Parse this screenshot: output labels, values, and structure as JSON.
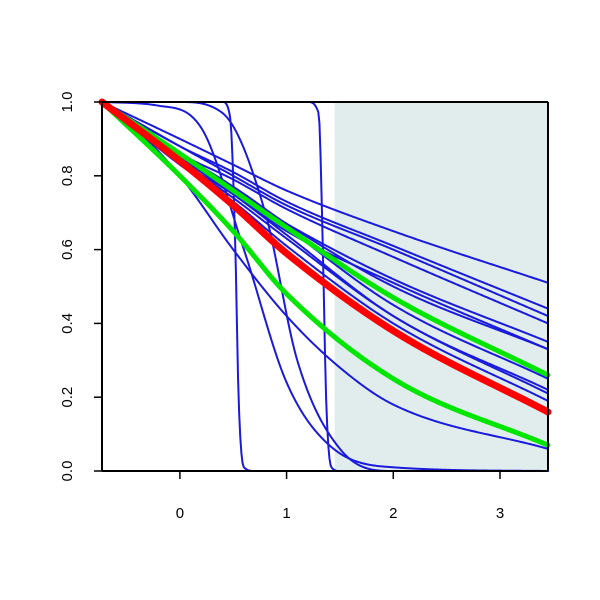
{
  "chart_data": {
    "type": "line",
    "title": "",
    "xlabel": "",
    "ylabel": "",
    "xlim": [
      -0.73,
      3.45
    ],
    "ylim": [
      0.0,
      1.0
    ],
    "x_ticks": [
      0,
      1,
      2,
      3
    ],
    "x_tick_labels": [
      "0",
      "1",
      "2",
      "3"
    ],
    "y_ticks": [
      0.0,
      0.2,
      0.4,
      0.6,
      0.8,
      1.0
    ],
    "y_tick_labels": [
      "0.0",
      "0.2",
      "0.4",
      "0.6",
      "0.8",
      "1.0"
    ],
    "grid": false,
    "legend": "none",
    "shaded_region": {
      "x_start": 1.45,
      "x_end": 3.45,
      "color": "#e1eded"
    },
    "colors": {
      "blue": "#1a1adc",
      "red": "#ff0000",
      "green": "#00e600",
      "axis": "#000000"
    },
    "series": [
      {
        "color": "blue",
        "width": 2,
        "x": [
          -0.73,
          0.0,
          0.5,
          1.0,
          2.0,
          3.45
        ],
        "y": [
          1.0,
          0.9,
          0.83,
          0.76,
          0.65,
          0.51
        ]
      },
      {
        "color": "blue",
        "width": 2,
        "x": [
          -0.73,
          0.0,
          0.5,
          1.0,
          2.0,
          3.45
        ],
        "y": [
          1.0,
          0.88,
          0.81,
          0.73,
          0.61,
          0.44
        ]
      },
      {
        "color": "blue",
        "width": 2,
        "x": [
          -0.73,
          0.0,
          0.5,
          1.0,
          2.0,
          3.45
        ],
        "y": [
          1.0,
          0.88,
          0.8,
          0.72,
          0.6,
          0.42
        ]
      },
      {
        "color": "blue",
        "width": 2,
        "x": [
          -0.73,
          0.0,
          0.5,
          1.0,
          2.0,
          3.45
        ],
        "y": [
          1.0,
          0.86,
          0.79,
          0.71,
          0.58,
          0.4
        ]
      },
      {
        "color": "blue",
        "width": 2,
        "x": [
          -0.73,
          0.0,
          0.5,
          1.0,
          2.0,
          3.45
        ],
        "y": [
          1.0,
          0.85,
          0.76,
          0.67,
          0.52,
          0.35
        ]
      },
      {
        "color": "blue",
        "width": 2,
        "x": [
          -0.73,
          0.0,
          0.5,
          1.0,
          2.0,
          3.45
        ],
        "y": [
          1.0,
          0.84,
          0.75,
          0.65,
          0.51,
          0.33
        ]
      },
      {
        "color": "blue",
        "width": 2,
        "x": [
          -0.73,
          0.0,
          0.5,
          1.0,
          2.0,
          3.45
        ],
        "y": [
          1.0,
          0.85,
          0.77,
          0.67,
          0.5,
          0.33
        ]
      },
      {
        "color": "blue",
        "width": 2,
        "x": [
          -0.73,
          0.0,
          0.5,
          1.0,
          2.0,
          3.45
        ],
        "y": [
          1.0,
          0.86,
          0.77,
          0.66,
          0.45,
          0.25
        ]
      },
      {
        "color": "blue",
        "width": 2,
        "x": [
          -0.73,
          0.0,
          0.5,
          1.0,
          2.0,
          3.45
        ],
        "y": [
          1.0,
          0.85,
          0.75,
          0.64,
          0.42,
          0.22
        ]
      },
      {
        "color": "blue",
        "width": 2,
        "x": [
          -0.73,
          0.0,
          0.5,
          1.0,
          2.0,
          3.45
        ],
        "y": [
          1.0,
          0.84,
          0.74,
          0.63,
          0.42,
          0.21
        ]
      },
      {
        "color": "blue",
        "width": 2,
        "x": [
          -0.73,
          0.0,
          0.5,
          1.0,
          2.0,
          3.45
        ],
        "y": [
          1.0,
          0.83,
          0.73,
          0.61,
          0.4,
          0.19
        ]
      },
      {
        "color": "blue",
        "width": 2,
        "x": [
          -0.73,
          -0.5,
          0.0,
          0.5,
          1.0,
          1.5,
          2.0,
          3.45
        ],
        "y": [
          1.0,
          0.95,
          0.8,
          0.6,
          0.42,
          0.28,
          0.18,
          0.06
        ]
      },
      {
        "color": "blue",
        "width": 2,
        "x": [
          -0.73,
          -0.2,
          0.2,
          0.6,
          1.0,
          1.4,
          2.0,
          3.45
        ],
        "y": [
          1.0,
          0.99,
          0.93,
          0.6,
          0.24,
          0.07,
          0.01,
          0.0
        ]
      },
      {
        "color": "blue",
        "width": 2,
        "x": [
          -0.73,
          0.0,
          0.4,
          0.8,
          1.1,
          1.5,
          2.0,
          3.45
        ],
        "y": [
          1.0,
          1.0,
          0.97,
          0.7,
          0.3,
          0.06,
          0.0,
          0.0
        ]
      },
      {
        "color": "blue",
        "width": 2,
        "x": [
          -0.73,
          0.4,
          0.47,
          0.52,
          0.55,
          0.6,
          0.7,
          3.45
        ],
        "y": [
          1.0,
          1.0,
          0.96,
          0.6,
          0.2,
          0.01,
          0.0,
          0.0
        ]
      },
      {
        "color": "blue",
        "width": 2,
        "x": [
          -0.73,
          1.2,
          1.3,
          1.34,
          1.37,
          1.42,
          1.5,
          3.45
        ],
        "y": [
          1.0,
          1.0,
          0.97,
          0.6,
          0.2,
          0.01,
          0.0,
          0.0
        ]
      },
      {
        "color": "green",
        "width": 5,
        "x": [
          -0.73,
          0.0,
          0.5,
          1.0,
          2.0,
          3.45
        ],
        "y": [
          1.0,
          0.86,
          0.76,
          0.66,
          0.47,
          0.26
        ]
      },
      {
        "color": "green",
        "width": 5,
        "x": [
          -0.73,
          0.0,
          0.5,
          1.0,
          2.0,
          3.45
        ],
        "y": [
          1.0,
          0.8,
          0.65,
          0.48,
          0.25,
          0.07
        ]
      },
      {
        "color": "red",
        "width": 7,
        "x": [
          -0.73,
          0.0,
          0.5,
          1.0,
          2.0,
          3.45
        ],
        "y": [
          1.0,
          0.84,
          0.72,
          0.59,
          0.38,
          0.16
        ]
      }
    ]
  }
}
